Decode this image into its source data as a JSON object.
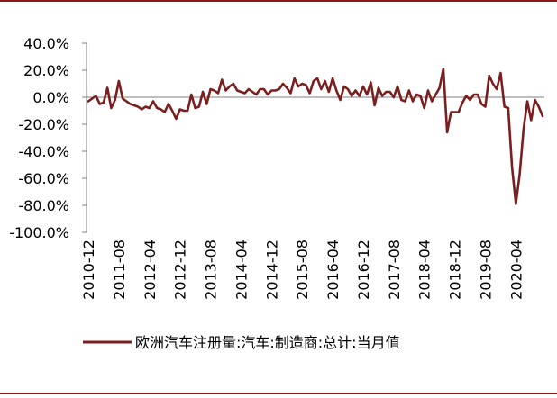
{
  "colors": {
    "series": "#7a1f1f",
    "frame_rule": "#8b1a1a",
    "axis": "#7f7f7f",
    "text": "#000000"
  },
  "chart_data": {
    "type": "line",
    "legend_position": "bottom",
    "grid": false,
    "ylim": [
      -100,
      40
    ],
    "yticks": [
      40,
      20,
      0,
      -20,
      -40,
      -60,
      -80,
      -100
    ],
    "ytick_labels": [
      "40.0%",
      "20.0%",
      "0.0%",
      "-20.0%",
      "-40.0%",
      "-60.0%",
      "-80.0%",
      "-100.0%"
    ],
    "xtick_labels": [
      "2010-12",
      "2011-08",
      "2012-04",
      "2012-12",
      "2013-08",
      "2014-04",
      "2014-12",
      "2015-08",
      "2016-04",
      "2016-12",
      "2017-08",
      "2018-04",
      "2018-12",
      "2019-08",
      "2020-04"
    ],
    "x": [
      "2010-12",
      "2011-01",
      "2011-02",
      "2011-03",
      "2011-04",
      "2011-05",
      "2011-06",
      "2011-07",
      "2011-08",
      "2011-09",
      "2011-10",
      "2011-11",
      "2011-12",
      "2012-01",
      "2012-02",
      "2012-03",
      "2012-04",
      "2012-05",
      "2012-06",
      "2012-07",
      "2012-08",
      "2012-09",
      "2012-10",
      "2012-11",
      "2012-12",
      "2013-01",
      "2013-02",
      "2013-03",
      "2013-04",
      "2013-05",
      "2013-06",
      "2013-07",
      "2013-08",
      "2013-09",
      "2013-10",
      "2013-11",
      "2013-12",
      "2014-01",
      "2014-02",
      "2014-03",
      "2014-04",
      "2014-05",
      "2014-06",
      "2014-07",
      "2014-08",
      "2014-09",
      "2014-10",
      "2014-11",
      "2014-12",
      "2015-01",
      "2015-02",
      "2015-03",
      "2015-04",
      "2015-05",
      "2015-06",
      "2015-07",
      "2015-08",
      "2015-09",
      "2015-10",
      "2015-11",
      "2015-12",
      "2016-01",
      "2016-02",
      "2016-03",
      "2016-04",
      "2016-05",
      "2016-06",
      "2016-07",
      "2016-08",
      "2016-09",
      "2016-10",
      "2016-11",
      "2016-12",
      "2017-01",
      "2017-02",
      "2017-03",
      "2017-04",
      "2017-05",
      "2017-06",
      "2017-07",
      "2017-08",
      "2017-09",
      "2017-10",
      "2017-11",
      "2017-12",
      "2018-01",
      "2018-02",
      "2018-03",
      "2018-04",
      "2018-05",
      "2018-06",
      "2018-07",
      "2018-08",
      "2018-09",
      "2018-10",
      "2018-11",
      "2018-12",
      "2019-01",
      "2019-02",
      "2019-03",
      "2019-04",
      "2019-05",
      "2019-06",
      "2019-07",
      "2019-08",
      "2019-09",
      "2019-10",
      "2019-11",
      "2019-12",
      "2020-01",
      "2020-02",
      "2020-03",
      "2020-04",
      "2020-05",
      "2020-06",
      "2020-07",
      "2020-08",
      "2020-09",
      "2020-10",
      "2020-11"
    ],
    "series": [
      {
        "name": "欧洲汽车注册量:汽车:制造商:总计:当月值",
        "values": [
          -3,
          -1,
          1,
          -5,
          -4,
          7,
          -8,
          -2,
          12,
          -1,
          -3,
          -5,
          -6,
          -7,
          -9,
          -7,
          -8,
          -3,
          -8,
          -9,
          -11,
          -5,
          -10,
          -16,
          -9,
          -10,
          -10,
          2,
          -8,
          -7,
          4,
          -5,
          6,
          5,
          3,
          13,
          5,
          8,
          10,
          5,
          4,
          3,
          6,
          4,
          2,
          6,
          6,
          2,
          5,
          5,
          6,
          10,
          7,
          3,
          14,
          8,
          10,
          9,
          3,
          12,
          14,
          6,
          12,
          4,
          14,
          5,
          -2,
          8,
          6,
          1,
          5,
          1,
          8,
          2,
          11,
          -6,
          7,
          1,
          4,
          4,
          0,
          8,
          -2,
          -3,
          5,
          -3,
          2,
          1,
          -8,
          5,
          -3,
          2,
          7,
          21,
          -26,
          -11,
          -11,
          -11,
          -4,
          1,
          -2,
          2,
          2,
          -5,
          -7,
          16,
          10,
          6,
          18,
          -7,
          -8,
          -52,
          -79,
          -57,
          -24,
          -3,
          -17,
          -2,
          -7,
          -14
        ]
      }
    ]
  }
}
